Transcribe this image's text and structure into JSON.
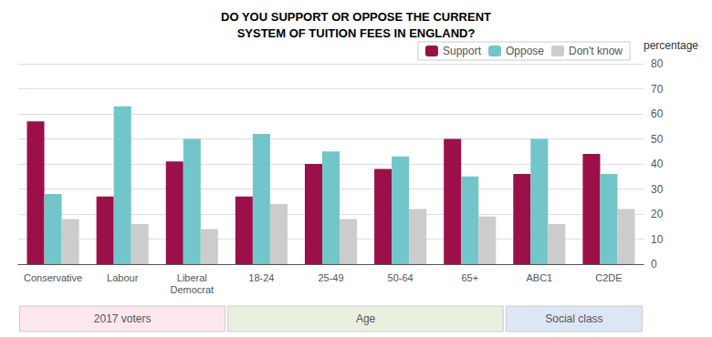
{
  "chart_data": {
    "type": "bar",
    "title": "DO YOU SUPPORT OR OPPOSE THE CURRENT\nSYSTEM OF TUITION FEES IN ENGLAND?",
    "ylabel": "percentage",
    "categories": [
      "Conservative",
      "Labour",
      "Liberal\nDemocrat",
      "18-24",
      "25-49",
      "50-64",
      "65+",
      "ABC1",
      "C2DE"
    ],
    "series": [
      {
        "name": "Support",
        "color": "#9b1048",
        "values": [
          57,
          27,
          41,
          27,
          40,
          38,
          50,
          36,
          44
        ]
      },
      {
        "name": "Oppose",
        "color": "#72c5c8",
        "values": [
          28,
          63,
          50,
          52,
          45,
          43,
          35,
          50,
          36
        ]
      },
      {
        "name": "Don't know",
        "color": "#cccccc",
        "values": [
          18,
          16,
          14,
          24,
          18,
          22,
          19,
          16,
          22
        ]
      }
    ],
    "ylim": [
      0,
      80
    ],
    "yticks": [
      0,
      10,
      20,
      30,
      40,
      50,
      60,
      70,
      80
    ],
    "grid": true,
    "legend": "upper right",
    "groups": [
      {
        "label": "2017 voters",
        "size": 3,
        "color": "#fce8ec"
      },
      {
        "label": "Age",
        "size": 4,
        "color": "#eaf0e0"
      },
      {
        "label": "Social class",
        "size": 2,
        "color": "#dde6f5"
      }
    ]
  }
}
